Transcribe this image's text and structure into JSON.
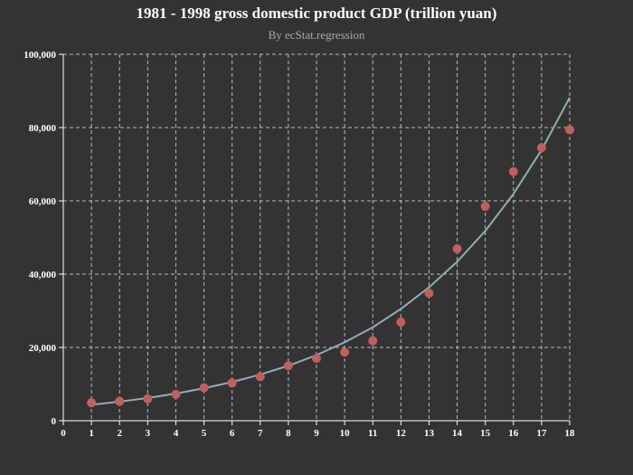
{
  "chart_data": {
    "type": "scatter",
    "title": "1981 - 1998 gross domestic product GDP (trillion yuan)",
    "subtitle": "By ecStat.regression",
    "xlabel": "",
    "ylabel": "",
    "xlim": [
      0,
      18
    ],
    "ylim": [
      0,
      100000
    ],
    "x_ticks": [
      "0",
      "1",
      "2",
      "3",
      "4",
      "5",
      "6",
      "7",
      "8",
      "9",
      "10",
      "11",
      "12",
      "13",
      "14",
      "15",
      "16",
      "17",
      "18"
    ],
    "y_ticks": [
      "0",
      "20,000",
      "40,000",
      "60,000",
      "80,000",
      "100,000"
    ],
    "grid": true,
    "colors": {
      "background": "#333333",
      "points": "#c1605b",
      "trendline": "#91aeb2",
      "grid": "#bbbbbb",
      "axis": "#ffffff",
      "text": "#ffffff",
      "subtitle": "#aaaaaa"
    },
    "series": [
      {
        "type": "scatter",
        "points": [
          [
            1,
            4900
          ],
          [
            2,
            5300
          ],
          [
            3,
            6000
          ],
          [
            4,
            7200
          ],
          [
            5,
            9000
          ],
          [
            6,
            10300
          ],
          [
            7,
            12000
          ],
          [
            8,
            15000
          ],
          [
            9,
            17000
          ],
          [
            10,
            18700
          ],
          [
            11,
            21800
          ],
          [
            12,
            26900
          ],
          [
            13,
            34800
          ],
          [
            14,
            46900
          ],
          [
            15,
            58500
          ],
          [
            16,
            68000
          ],
          [
            17,
            74500
          ],
          [
            18,
            79400
          ]
        ]
      },
      {
        "type": "line",
        "regression": "exponential",
        "coefficients": {
          "a": 3640,
          "b": 0.1772
        },
        "points": [
          [
            1,
            4350
          ],
          [
            2,
            5200
          ],
          [
            3,
            6200
          ],
          [
            4,
            7400
          ],
          [
            5,
            8850
          ],
          [
            6,
            10550
          ],
          [
            7,
            12600
          ],
          [
            8,
            15000
          ],
          [
            9,
            17900
          ],
          [
            10,
            21400
          ],
          [
            11,
            25500
          ],
          [
            12,
            30500
          ],
          [
            13,
            36400
          ],
          [
            14,
            43400
          ],
          [
            15,
            51800
          ],
          [
            16,
            61900
          ],
          [
            17,
            73900
          ],
          [
            18,
            88200
          ]
        ]
      }
    ]
  }
}
